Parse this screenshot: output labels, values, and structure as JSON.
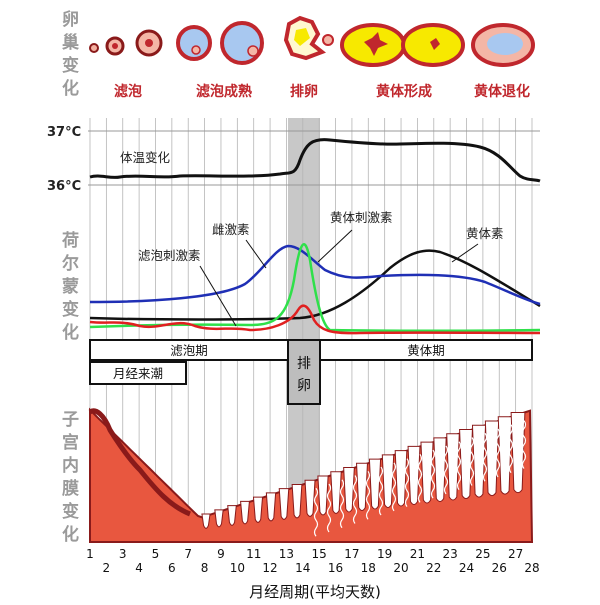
{
  "side_labels": {
    "ovary": [
      "卵",
      "巢",
      "变",
      "化"
    ],
    "hormone": [
      "荷",
      "尔",
      "蒙",
      "变",
      "化"
    ],
    "endometrium": [
      "子",
      "宫",
      "内",
      "膜",
      "变",
      "化"
    ]
  },
  "ovary_stages": [
    "滤泡",
    "滤泡成熟",
    "排卵",
    "黄体形成",
    "黄体退化"
  ],
  "temperature": {
    "high_label": "37°C",
    "low_label": "36°C",
    "curve_label": "体温变化"
  },
  "hormones": {
    "fsh_label": "滤泡刺激素",
    "estrogen_label": "雌激素",
    "lh_label": "黄体刺激素",
    "progesterone_label": "黄体素"
  },
  "phases": {
    "follicular": "滤泡期",
    "ovulation": [
      "排",
      "卵"
    ],
    "luteal": "黄体期",
    "menstruation": "月经来潮"
  },
  "days": [
    "1",
    "2",
    "3",
    "4",
    "5",
    "6",
    "7",
    "8",
    "9",
    "10",
    "11",
    "12",
    "13",
    "14",
    "15",
    "16",
    "17",
    "18",
    "19",
    "20",
    "21",
    "22",
    "23",
    "24",
    "25",
    "26",
    "27",
    "28"
  ],
  "x_axis_title": "月经周期(平均天数)",
  "colors": {
    "temperature": "#111111",
    "estrogen": "#1f2fb5",
    "lh": "#2fe04a",
    "fsh": "#e02020",
    "progesterone": "#111111",
    "endometrium": "#e8573f",
    "endometrium_dark": "#8a1a1a",
    "ovulation_band": "#c8c8c8",
    "stage_text": "#c0272d",
    "side_text": "#9a9a9a"
  }
}
